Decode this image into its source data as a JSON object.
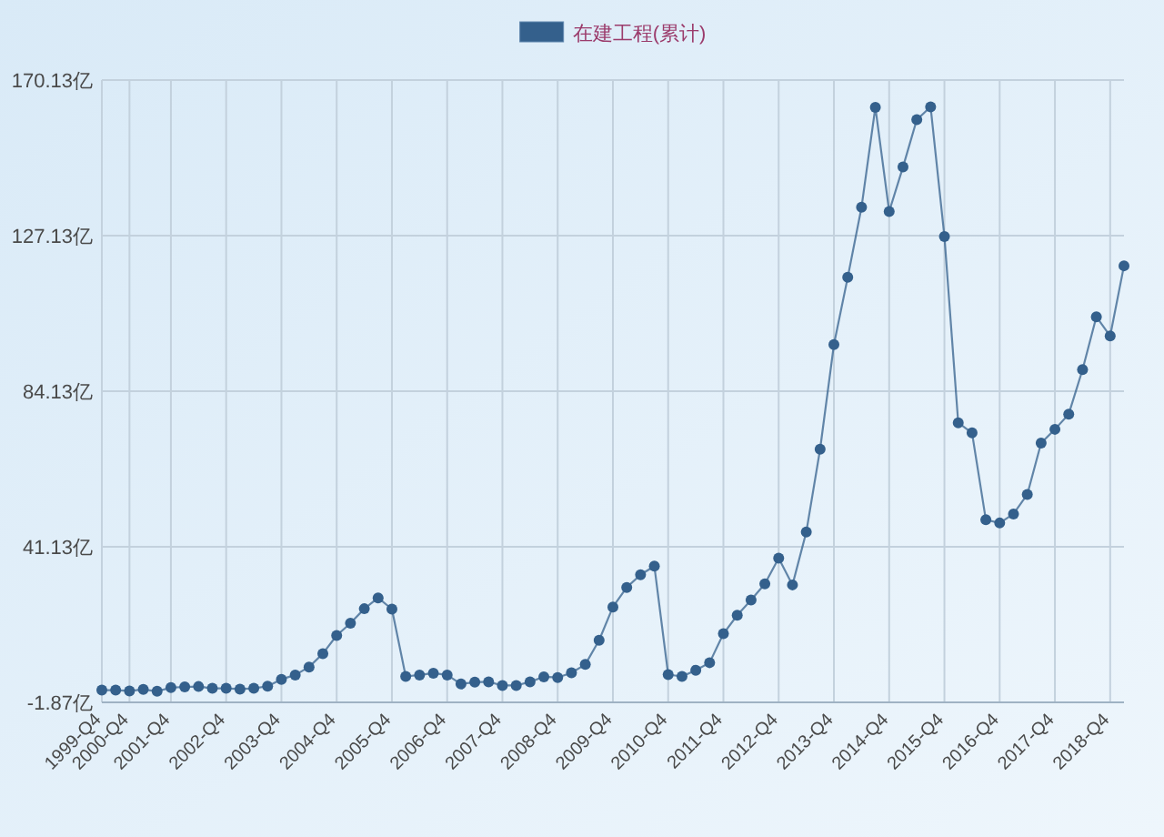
{
  "chart_data": {
    "type": "line",
    "categories": [
      "1999-Q4",
      null,
      "2000-Q4",
      null,
      null,
      "2001-Q4",
      null,
      null,
      null,
      "2002-Q4",
      null,
      null,
      null,
      "2003-Q4",
      null,
      null,
      null,
      "2004-Q4",
      null,
      null,
      null,
      "2005-Q4",
      null,
      null,
      null,
      "2006-Q4",
      null,
      null,
      null,
      "2007-Q4",
      null,
      null,
      null,
      "2008-Q4",
      null,
      null,
      null,
      "2009-Q4",
      null,
      null,
      null,
      "2010-Q4",
      null,
      null,
      null,
      "2011-Q4",
      null,
      null,
      null,
      "2012-Q4",
      null,
      null,
      null,
      "2013-Q4",
      null,
      null,
      null,
      "2014-Q4",
      null,
      null,
      null,
      "2015-Q4",
      null,
      null,
      null,
      "2016-Q4",
      null,
      null,
      null,
      "2017-Q4",
      null,
      null,
      null,
      "2018-Q4",
      null
    ],
    "series": [
      {
        "name": "在建工程(累计)",
        "color": "#34608c",
        "values": [
          1.5,
          1.5,
          1.3,
          1.7,
          1.2,
          2.2,
          2.4,
          2.5,
          2.0,
          2.0,
          1.8,
          2.0,
          2.6,
          4.5,
          5.7,
          7.9,
          11.6,
          16.6,
          20.0,
          24.0,
          27.0,
          23.9,
          5.3,
          5.7,
          6.2,
          5.7,
          3.2,
          3.7,
          3.8,
          2.8,
          2.8,
          3.8,
          5.2,
          5.0,
          6.3,
          8.6,
          15.3,
          24.5,
          29.9,
          33.4,
          35.8,
          5.8,
          5.3,
          7.0,
          9.1,
          17.1,
          22.2,
          26.4,
          30.9,
          38.0,
          30.6,
          45.2,
          68.1,
          97.0,
          115.6,
          135.0,
          162.6,
          133.8,
          146.1,
          159.2,
          162.7,
          126.9,
          75.4,
          72.6,
          48.6,
          47.7,
          50.2,
          55.6,
          69.8,
          73.6,
          77.8,
          90.1,
          104.7,
          99.4,
          118.8
        ]
      }
    ],
    "ylim": [
      -1.87,
      170.13
    ],
    "yticks": [
      {
        "value": -1.87,
        "label": "-1.87亿"
      },
      {
        "value": 41.13,
        "label": "41.13亿"
      },
      {
        "value": 84.13,
        "label": "84.13亿"
      },
      {
        "value": 127.13,
        "label": "127.13亿"
      },
      {
        "value": 170.13,
        "label": "170.13亿"
      }
    ],
    "grid": true,
    "legend": "top",
    "marker": "circle",
    "line_style": "solid"
  }
}
